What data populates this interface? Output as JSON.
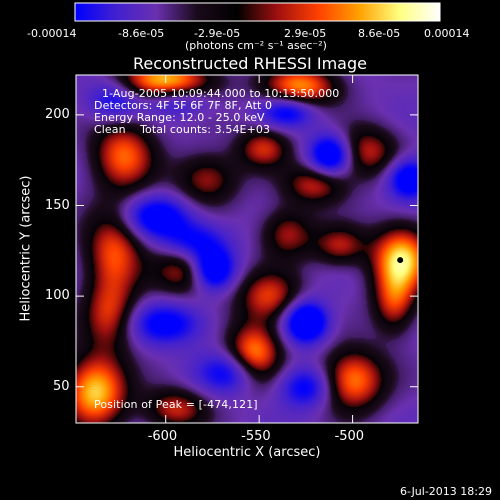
{
  "colorbar": {
    "tick_labels": [
      "-0.00014",
      "-8.6e-05",
      "-2.9e-05",
      "2.9e-05",
      "8.6e-05",
      "0.00014"
    ],
    "units_label": "(photons cm⁻² s⁻¹ asec⁻²)",
    "colors": [
      "#0000ff",
      "#4020d0",
      "#6a30b0",
      "#1a0a1a",
      "#000000",
      "#a01010",
      "#ff4000",
      "#ffa000",
      "#ffff80",
      "#ffffff"
    ]
  },
  "plot": {
    "title": "Reconstructed RHESSI Image",
    "xlabel": "Heliocentric X (arcsec)",
    "ylabel": "Heliocentric Y (arcsec)",
    "x_ticks": [
      "-600",
      "-550",
      "-500"
    ],
    "y_ticks": [
      "50",
      "100",
      "150",
      "200"
    ],
    "info_lines": [
      "1-Aug-2005 10:09:44.000 to 10:13:50.000",
      "Detectors: 4F 5F 6F 7F 8F, Att 0",
      "Energy Range: 12.0 - 25.0 keV",
      "Clean    Total counts: 3.54E+03"
    ],
    "peak_label": "Position of Peak = [-474,121]"
  },
  "footer": {
    "date_stamp": "6-Jul-2013 18:29"
  },
  "chart_data": {
    "type": "heatmap",
    "title": "Reconstructed RHESSI Image",
    "xlabel": "Heliocentric X (arcsec)",
    "ylabel": "Heliocentric Y (arcsec)",
    "xlim": [
      -648,
      -465
    ],
    "ylim": [
      30,
      222
    ],
    "x_ticks": [
      -600,
      -550,
      -500
    ],
    "y_ticks": [
      50,
      100,
      150,
      200
    ],
    "color_range": [
      -0.00014,
      0.00014
    ],
    "colorbar_ticks": [
      -0.00014,
      -8.6e-05,
      -2.9e-05,
      2.9e-05,
      8.6e-05,
      0.00014
    ],
    "peak_position": [
      -474,
      121
    ],
    "blobs": [
      {
        "x": -600,
        "y": 218,
        "sx": 18,
        "sy": 9,
        "v": 1.0
      },
      {
        "x": -528,
        "y": 216,
        "sx": 14,
        "sy": 8,
        "v": 0.85
      },
      {
        "x": -623,
        "y": 178,
        "sx": 12,
        "sy": 14,
        "v": 0.75
      },
      {
        "x": -628,
        "y": 125,
        "sx": 11,
        "sy": 16,
        "v": 0.7
      },
      {
        "x": -630,
        "y": 90,
        "sx": 10,
        "sy": 14,
        "v": 0.6
      },
      {
        "x": -638,
        "y": 48,
        "sx": 12,
        "sy": 14,
        "v": 1.0
      },
      {
        "x": -590,
        "y": 115,
        "sx": 12,
        "sy": 10,
        "v": 0.6
      },
      {
        "x": -578,
        "y": 165,
        "sx": 12,
        "sy": 10,
        "v": 0.55
      },
      {
        "x": -548,
        "y": 182,
        "sx": 10,
        "sy": 8,
        "v": 0.6
      },
      {
        "x": -520,
        "y": 162,
        "sx": 12,
        "sy": 8,
        "v": 0.6
      },
      {
        "x": -535,
        "y": 135,
        "sx": 10,
        "sy": 10,
        "v": 0.55
      },
      {
        "x": -545,
        "y": 100,
        "sx": 12,
        "sy": 10,
        "v": 0.65
      },
      {
        "x": -553,
        "y": 68,
        "sx": 10,
        "sy": 12,
        "v": 0.9
      },
      {
        "x": -507,
        "y": 128,
        "sx": 10,
        "sy": 8,
        "v": 0.55
      },
      {
        "x": -493,
        "y": 180,
        "sx": 12,
        "sy": 10,
        "v": 0.6
      },
      {
        "x": -474,
        "y": 121,
        "sx": 11,
        "sy": 13,
        "v": 1.0
      },
      {
        "x": -478,
        "y": 96,
        "sx": 8,
        "sy": 12,
        "v": 0.6
      },
      {
        "x": -500,
        "y": 54,
        "sx": 12,
        "sy": 12,
        "v": 0.85
      },
      {
        "x": -595,
        "y": 38,
        "sx": 12,
        "sy": 8,
        "v": 0.6
      },
      {
        "x": -595,
        "y": 208,
        "sx": 14,
        "sy": 6,
        "v": -0.6
      },
      {
        "x": -535,
        "y": 202,
        "sx": 10,
        "sy": 6,
        "v": -0.6
      },
      {
        "x": -512,
        "y": 178,
        "sx": 8,
        "sy": 8,
        "v": -0.9
      },
      {
        "x": -470,
        "y": 165,
        "sx": 8,
        "sy": 8,
        "v": -0.8
      },
      {
        "x": -605,
        "y": 144,
        "sx": 12,
        "sy": 8,
        "v": -0.7
      },
      {
        "x": -585,
        "y": 130,
        "sx": 12,
        "sy": 8,
        "v": -0.6
      },
      {
        "x": -575,
        "y": 115,
        "sx": 8,
        "sy": 8,
        "v": -0.9
      },
      {
        "x": -525,
        "y": 86,
        "sx": 8,
        "sy": 8,
        "v": -1.0
      },
      {
        "x": -600,
        "y": 85,
        "sx": 14,
        "sy": 8,
        "v": -0.6
      },
      {
        "x": -565,
        "y": 58,
        "sx": 12,
        "sy": 8,
        "v": -0.6
      },
      {
        "x": -525,
        "y": 50,
        "sx": 10,
        "sy": 8,
        "v": -0.6
      },
      {
        "x": -628,
        "y": 208,
        "sx": 10,
        "sy": 8,
        "v": -0.55
      }
    ]
  }
}
